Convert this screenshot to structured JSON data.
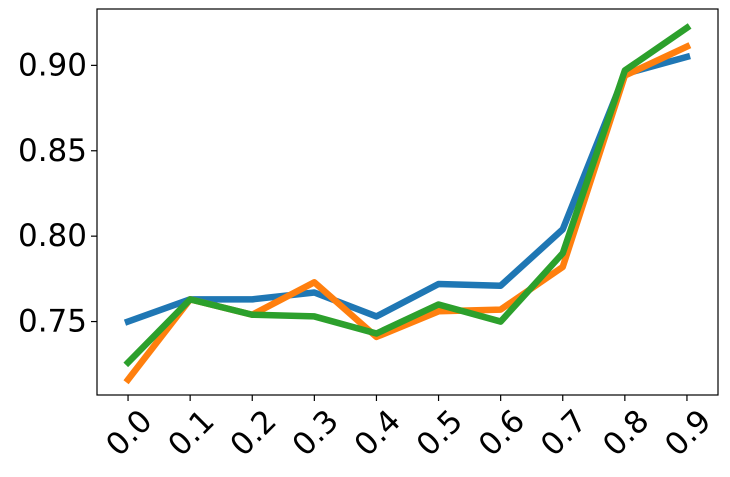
{
  "chart_data": {
    "type": "line",
    "title": "",
    "xlabel": "",
    "ylabel": "",
    "x": [
      "0.0",
      "0.1",
      "0.2",
      "0.3",
      "0.4",
      "0.5",
      "0.6",
      "0.7",
      "0.8",
      "0.9"
    ],
    "xlim": [
      -0.5,
      9.5
    ],
    "ylim": [
      0.707,
      0.933
    ],
    "yticks": [
      "0.75",
      "0.80",
      "0.85",
      "0.90"
    ],
    "ytick_values": [
      0.75,
      0.8,
      0.85,
      0.9
    ],
    "grid": false,
    "legend": "none",
    "series": [
      {
        "color": "#1f77b4",
        "values": [
          0.75,
          0.763,
          0.763,
          0.767,
          0.753,
          0.772,
          0.771,
          0.804,
          0.895,
          0.905
        ]
      },
      {
        "color": "#ff7f0e",
        "values": [
          0.716,
          0.763,
          0.754,
          0.773,
          0.741,
          0.756,
          0.757,
          0.782,
          0.894,
          0.911
        ]
      },
      {
        "color": "#2ca02c",
        "values": [
          0.726,
          0.763,
          0.754,
          0.753,
          0.743,
          0.76,
          0.75,
          0.79,
          0.897,
          0.922
        ]
      }
    ]
  }
}
